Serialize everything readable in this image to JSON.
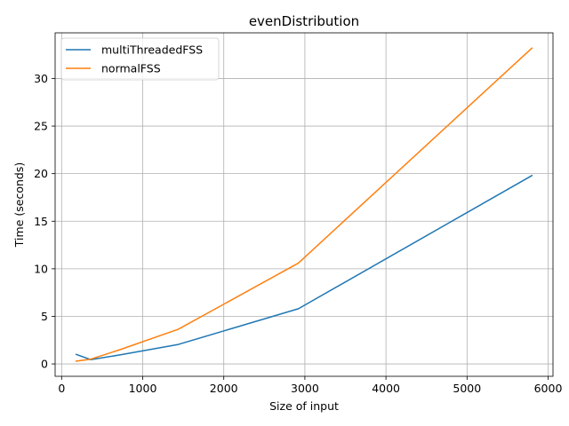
{
  "chart_data": {
    "type": "line",
    "title": "evenDistribution",
    "xlabel": "Size of input",
    "ylabel": "Time (seconds)",
    "xlim": [
      -80,
      6060
    ],
    "ylim": [
      -1.3,
      34.8
    ],
    "xticks": [
      0,
      1000,
      2000,
      3000,
      4000,
      5000,
      6000
    ],
    "yticks": [
      0,
      5,
      10,
      15,
      20,
      25,
      30
    ],
    "grid": true,
    "legend_position": "upper-left",
    "series": [
      {
        "name": "multiThreadedFSS",
        "color": "#1f77b4",
        "x": [
          180,
          360,
          720,
          1440,
          2920,
          5800
        ],
        "y": [
          1.0,
          0.45,
          0.95,
          2.05,
          5.8,
          19.8
        ]
      },
      {
        "name": "normalFSS",
        "color": "#ff7f0e",
        "x": [
          180,
          360,
          720,
          1440,
          2920,
          5800
        ],
        "y": [
          0.3,
          0.5,
          1.5,
          3.65,
          10.6,
          33.2
        ]
      }
    ]
  }
}
